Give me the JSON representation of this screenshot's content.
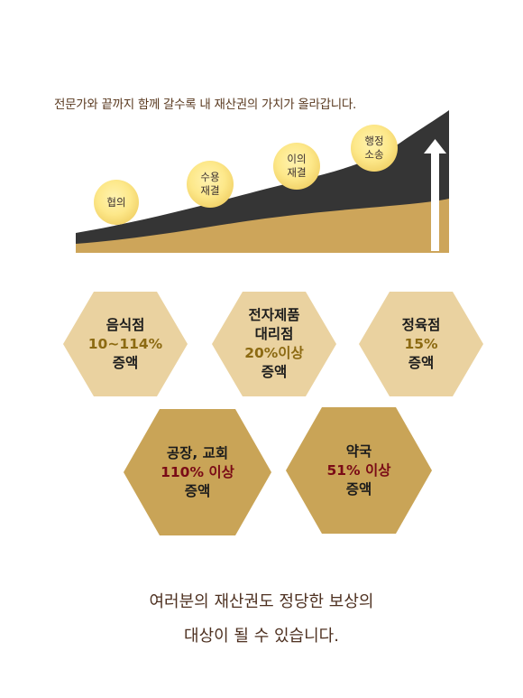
{
  "headline": "전문가와 끝까지 함께 갈수록 내 재산권의 가치가 올라갑니다.",
  "stages": [
    {
      "line1": "협의",
      "line2": ""
    },
    {
      "line1": "수용",
      "line2": "재결"
    },
    {
      "line1": "이의",
      "line2": "재결"
    },
    {
      "line1": "행정",
      "line2": "소송"
    }
  ],
  "hexes": [
    {
      "name": "restaurant",
      "lines": [
        "음식점"
      ],
      "pct": "10~114%",
      "suffix": "증액"
    },
    {
      "name": "electronics-store",
      "lines": [
        "전자제품",
        "대리점"
      ],
      "pct": "20%이상",
      "suffix": "증액"
    },
    {
      "name": "butcher-shop",
      "lines": [
        "정육점"
      ],
      "pct": "15%",
      "suffix": "증액"
    },
    {
      "name": "factory-church",
      "lines": [
        "공장, 교회"
      ],
      "pct": "110% 이상",
      "suffix": "증액"
    },
    {
      "name": "pharmacy",
      "lines": [
        "약국"
      ],
      "pct": "51% 이상",
      "suffix": "증액"
    }
  ],
  "footer": {
    "line1": "여러분의 재산권도 정당한 보상의",
    "line2": "대상이 될 수 있습니다."
  },
  "colors": {
    "dark_band": "#353535",
    "gold_band": "#cda55a",
    "hex_light": "#ead2a0",
    "hex_dark": "#c9a457",
    "pct_gold": "#8c6a12",
    "pct_red": "#7a0b16",
    "text_brown": "#4e3121"
  }
}
